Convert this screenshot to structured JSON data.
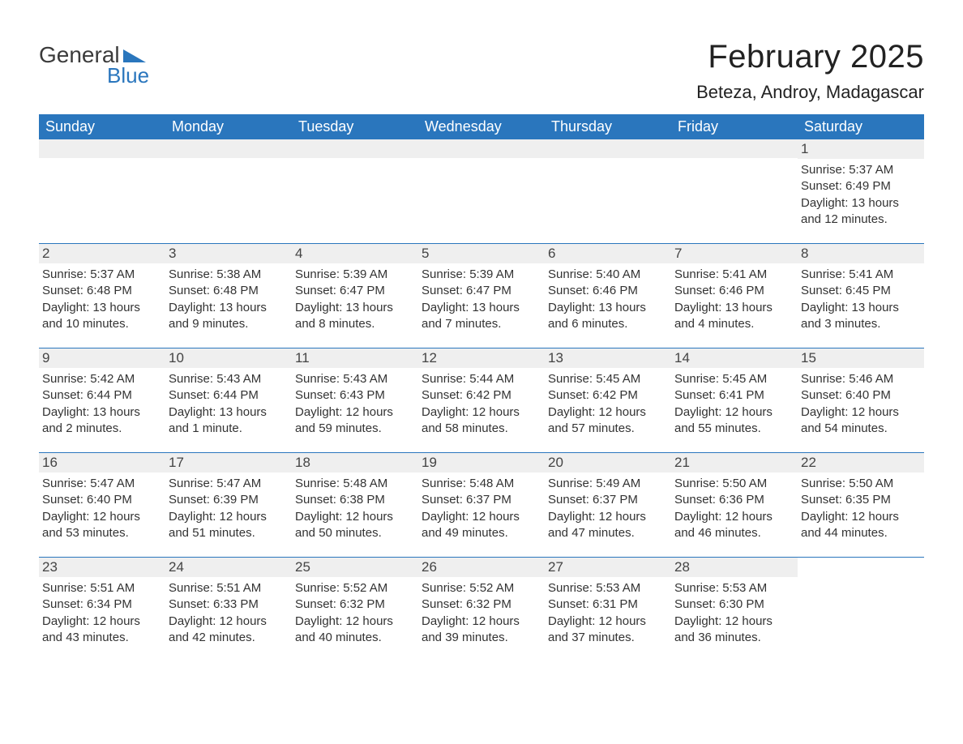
{
  "brand": {
    "text1": "General",
    "text2": "Blue",
    "accent_color": "#2a76bd"
  },
  "title": {
    "month": "February 2025",
    "location": "Beteza, Androy, Madagascar"
  },
  "dayheaders": [
    "Sunday",
    "Monday",
    "Tuesday",
    "Wednesday",
    "Thursday",
    "Friday",
    "Saturday"
  ],
  "colors": {
    "header_bg": "#2a76bd",
    "header_text": "#ffffff",
    "daynum_bg": "#efefef",
    "text": "#333333",
    "title_text": "#222222",
    "background": "#ffffff",
    "week_border": "#2a76bd"
  },
  "fontsizes": {
    "title_month": 40,
    "title_location": 22,
    "dayheader": 18,
    "daynum": 17,
    "info": 15,
    "logo": 28
  },
  "weeks": [
    [
      {
        "blank": true
      },
      {
        "blank": true
      },
      {
        "blank": true
      },
      {
        "blank": true
      },
      {
        "blank": true
      },
      {
        "blank": true
      },
      {
        "day": "1",
        "sunrise": "Sunrise: 5:37 AM",
        "sunset": "Sunset: 6:49 PM",
        "dl1": "Daylight: 13 hours",
        "dl2": "and 12 minutes."
      }
    ],
    [
      {
        "day": "2",
        "sunrise": "Sunrise: 5:37 AM",
        "sunset": "Sunset: 6:48 PM",
        "dl1": "Daylight: 13 hours",
        "dl2": "and 10 minutes."
      },
      {
        "day": "3",
        "sunrise": "Sunrise: 5:38 AM",
        "sunset": "Sunset: 6:48 PM",
        "dl1": "Daylight: 13 hours",
        "dl2": "and 9 minutes."
      },
      {
        "day": "4",
        "sunrise": "Sunrise: 5:39 AM",
        "sunset": "Sunset: 6:47 PM",
        "dl1": "Daylight: 13 hours",
        "dl2": "and 8 minutes."
      },
      {
        "day": "5",
        "sunrise": "Sunrise: 5:39 AM",
        "sunset": "Sunset: 6:47 PM",
        "dl1": "Daylight: 13 hours",
        "dl2": "and 7 minutes."
      },
      {
        "day": "6",
        "sunrise": "Sunrise: 5:40 AM",
        "sunset": "Sunset: 6:46 PM",
        "dl1": "Daylight: 13 hours",
        "dl2": "and 6 minutes."
      },
      {
        "day": "7",
        "sunrise": "Sunrise: 5:41 AM",
        "sunset": "Sunset: 6:46 PM",
        "dl1": "Daylight: 13 hours",
        "dl2": "and 4 minutes."
      },
      {
        "day": "8",
        "sunrise": "Sunrise: 5:41 AM",
        "sunset": "Sunset: 6:45 PM",
        "dl1": "Daylight: 13 hours",
        "dl2": "and 3 minutes."
      }
    ],
    [
      {
        "day": "9",
        "sunrise": "Sunrise: 5:42 AM",
        "sunset": "Sunset: 6:44 PM",
        "dl1": "Daylight: 13 hours",
        "dl2": "and 2 minutes."
      },
      {
        "day": "10",
        "sunrise": "Sunrise: 5:43 AM",
        "sunset": "Sunset: 6:44 PM",
        "dl1": "Daylight: 13 hours",
        "dl2": "and 1 minute."
      },
      {
        "day": "11",
        "sunrise": "Sunrise: 5:43 AM",
        "sunset": "Sunset: 6:43 PM",
        "dl1": "Daylight: 12 hours",
        "dl2": "and 59 minutes."
      },
      {
        "day": "12",
        "sunrise": "Sunrise: 5:44 AM",
        "sunset": "Sunset: 6:42 PM",
        "dl1": "Daylight: 12 hours",
        "dl2": "and 58 minutes."
      },
      {
        "day": "13",
        "sunrise": "Sunrise: 5:45 AM",
        "sunset": "Sunset: 6:42 PM",
        "dl1": "Daylight: 12 hours",
        "dl2": "and 57 minutes."
      },
      {
        "day": "14",
        "sunrise": "Sunrise: 5:45 AM",
        "sunset": "Sunset: 6:41 PM",
        "dl1": "Daylight: 12 hours",
        "dl2": "and 55 minutes."
      },
      {
        "day": "15",
        "sunrise": "Sunrise: 5:46 AM",
        "sunset": "Sunset: 6:40 PM",
        "dl1": "Daylight: 12 hours",
        "dl2": "and 54 minutes."
      }
    ],
    [
      {
        "day": "16",
        "sunrise": "Sunrise: 5:47 AM",
        "sunset": "Sunset: 6:40 PM",
        "dl1": "Daylight: 12 hours",
        "dl2": "and 53 minutes."
      },
      {
        "day": "17",
        "sunrise": "Sunrise: 5:47 AM",
        "sunset": "Sunset: 6:39 PM",
        "dl1": "Daylight: 12 hours",
        "dl2": "and 51 minutes."
      },
      {
        "day": "18",
        "sunrise": "Sunrise: 5:48 AM",
        "sunset": "Sunset: 6:38 PM",
        "dl1": "Daylight: 12 hours",
        "dl2": "and 50 minutes."
      },
      {
        "day": "19",
        "sunrise": "Sunrise: 5:48 AM",
        "sunset": "Sunset: 6:37 PM",
        "dl1": "Daylight: 12 hours",
        "dl2": "and 49 minutes."
      },
      {
        "day": "20",
        "sunrise": "Sunrise: 5:49 AM",
        "sunset": "Sunset: 6:37 PM",
        "dl1": "Daylight: 12 hours",
        "dl2": "and 47 minutes."
      },
      {
        "day": "21",
        "sunrise": "Sunrise: 5:50 AM",
        "sunset": "Sunset: 6:36 PM",
        "dl1": "Daylight: 12 hours",
        "dl2": "and 46 minutes."
      },
      {
        "day": "22",
        "sunrise": "Sunrise: 5:50 AM",
        "sunset": "Sunset: 6:35 PM",
        "dl1": "Daylight: 12 hours",
        "dl2": "and 44 minutes."
      }
    ],
    [
      {
        "day": "23",
        "sunrise": "Sunrise: 5:51 AM",
        "sunset": "Sunset: 6:34 PM",
        "dl1": "Daylight: 12 hours",
        "dl2": "and 43 minutes."
      },
      {
        "day": "24",
        "sunrise": "Sunrise: 5:51 AM",
        "sunset": "Sunset: 6:33 PM",
        "dl1": "Daylight: 12 hours",
        "dl2": "and 42 minutes."
      },
      {
        "day": "25",
        "sunrise": "Sunrise: 5:52 AM",
        "sunset": "Sunset: 6:32 PM",
        "dl1": "Daylight: 12 hours",
        "dl2": "and 40 minutes."
      },
      {
        "day": "26",
        "sunrise": "Sunrise: 5:52 AM",
        "sunset": "Sunset: 6:32 PM",
        "dl1": "Daylight: 12 hours",
        "dl2": "and 39 minutes."
      },
      {
        "day": "27",
        "sunrise": "Sunrise: 5:53 AM",
        "sunset": "Sunset: 6:31 PM",
        "dl1": "Daylight: 12 hours",
        "dl2": "and 37 minutes."
      },
      {
        "day": "28",
        "sunrise": "Sunrise: 5:53 AM",
        "sunset": "Sunset: 6:30 PM",
        "dl1": "Daylight: 12 hours",
        "dl2": "and 36 minutes."
      },
      {
        "blank_trailing": true
      }
    ]
  ]
}
